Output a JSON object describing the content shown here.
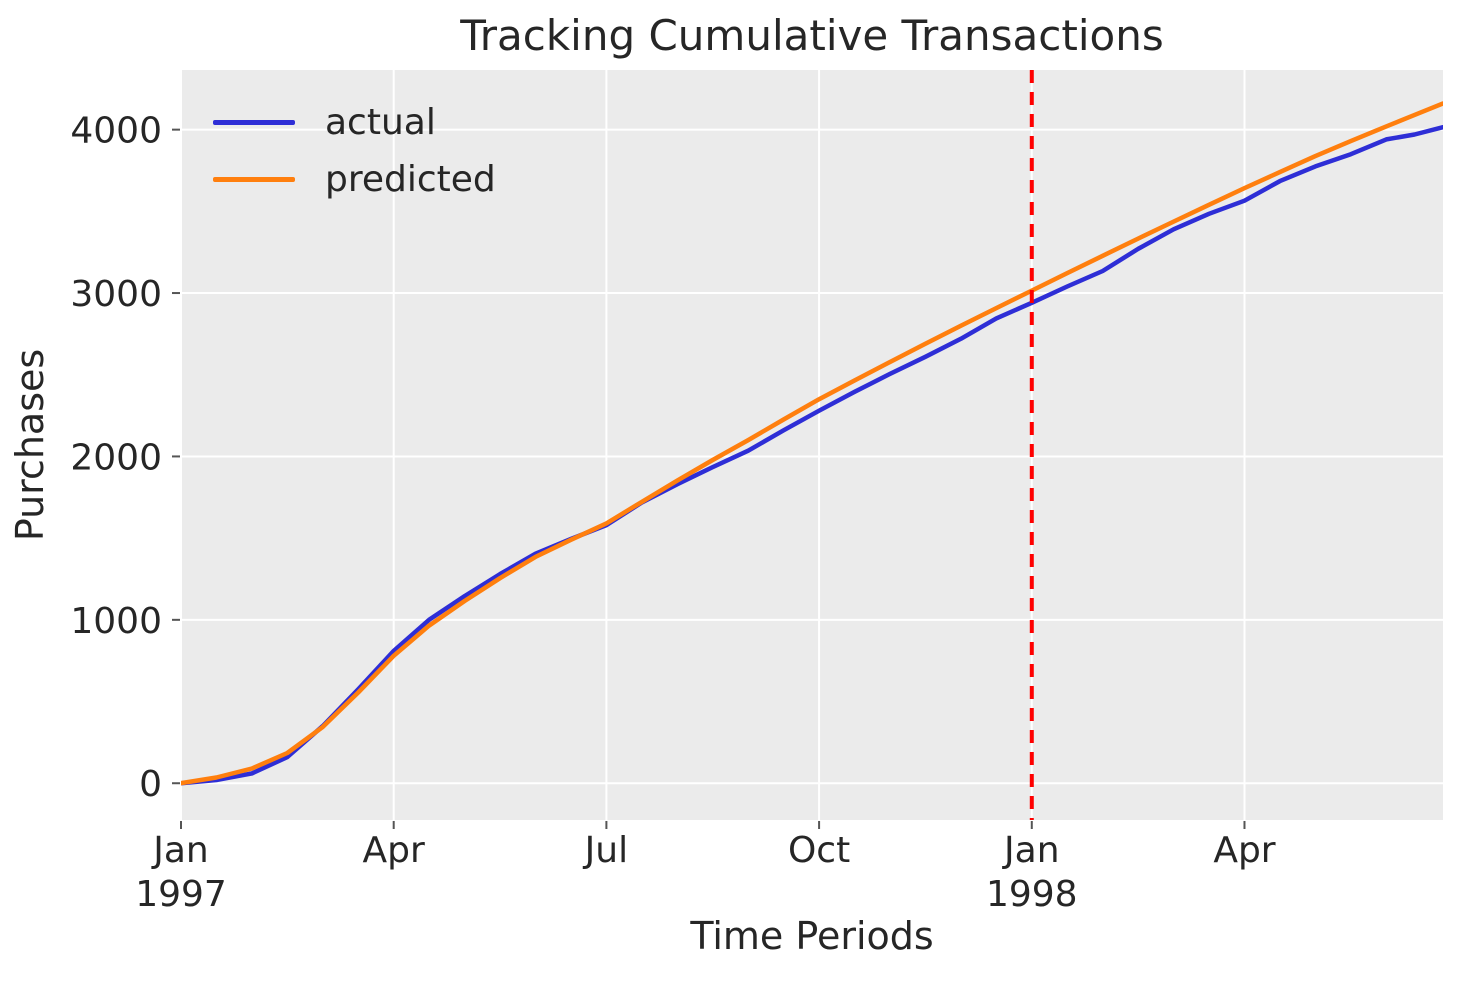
{
  "page": {
    "title": "Tracking Cumulative Transactions"
  },
  "chart_data": {
    "type": "line",
    "title": "Tracking Cumulative Transactions",
    "xlabel": "Time Periods",
    "ylabel": "Purchases",
    "x_unit": "months since Jan 1997 (monthly-interpolated weekly cumulative totals)",
    "xlim": [
      0,
      17.8
    ],
    "ylim": [
      -225,
      4365
    ],
    "grid": true,
    "plot_background": "#ebebeb",
    "grid_color": "#ffffff",
    "tick_color": "#555555",
    "text_color": "#262626",
    "legend_position": "upper left",
    "xticks": [
      {
        "pos": 0,
        "label": "Jan",
        "sublabel": "1997"
      },
      {
        "pos": 3,
        "label": "Apr",
        "sublabel": ""
      },
      {
        "pos": 6,
        "label": "Jul",
        "sublabel": ""
      },
      {
        "pos": 9,
        "label": "Oct",
        "sublabel": ""
      },
      {
        "pos": 12,
        "label": "Jan",
        "sublabel": "1998"
      },
      {
        "pos": 15,
        "label": "Apr",
        "sublabel": ""
      }
    ],
    "yticks": [
      0,
      1000,
      2000,
      3000,
      4000
    ],
    "x": [
      0,
      0.5,
      1,
      1.5,
      2,
      2.5,
      3,
      3.5,
      4,
      4.5,
      5,
      5.5,
      6,
      6.5,
      7,
      7.5,
      8,
      8.5,
      9,
      9.5,
      10,
      10.5,
      11,
      11.5,
      12,
      12.5,
      13,
      13.5,
      14,
      14.5,
      15,
      15.5,
      16,
      16.5,
      17,
      17.4,
      17.8
    ],
    "series": [
      {
        "name": "actual",
        "color": "#2e2ed6",
        "values": [
          0,
          20,
          60,
          160,
          350,
          575,
          810,
          1000,
          1145,
          1280,
          1405,
          1495,
          1580,
          1718,
          1830,
          1935,
          2035,
          2160,
          2280,
          2395,
          2505,
          2610,
          2720,
          2845,
          2940,
          3040,
          3135,
          3270,
          3390,
          3485,
          3565,
          3685,
          3775,
          3850,
          3940,
          3970,
          4015
        ]
      },
      {
        "name": "predicted",
        "color": "#ff7f0e",
        "values": [
          0,
          35,
          90,
          185,
          345,
          555,
          780,
          965,
          1115,
          1255,
          1385,
          1490,
          1590,
          1722,
          1852,
          1978,
          2100,
          2226,
          2350,
          2465,
          2578,
          2690,
          2800,
          2908,
          3015,
          3122,
          3228,
          3333,
          3437,
          3540,
          3642,
          3740,
          3838,
          3930,
          4020,
          4090,
          4160
        ]
      }
    ],
    "vline": {
      "x": 12,
      "at_label": "Jan 1998",
      "color": "#ff0000",
      "style": "dashed"
    }
  }
}
